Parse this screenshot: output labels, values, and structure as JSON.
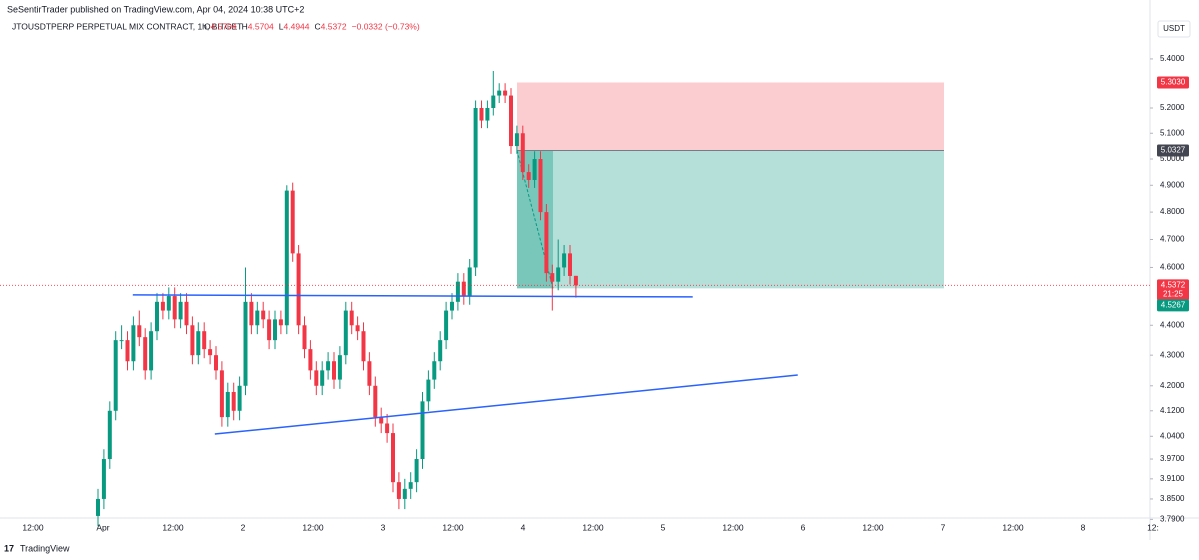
{
  "chart_data": {
    "type": "candlestick",
    "publisher": "SeSentirTrader published on TradingView.com, Apr 04, 2024 10:38 UTC+2",
    "symbol": "JTOUSDTPERP PERPETUAL MIX CONTRACT, 1h, BITGET",
    "legend_parts": [
      {
        "label": "O",
        "value": "4.5704"
      },
      {
        "label": "H",
        "value": "4.5704"
      },
      {
        "label": "L",
        "value": "4.4944"
      },
      {
        "label": "C",
        "value": "4.5372"
      },
      {
        "label": "",
        "value": "−0.0332 (−0.73%)"
      }
    ],
    "currency": "USDT",
    "brand": "TradingView",
    "log_scale": true,
    "ylim": [
      3.794,
      5.564
    ],
    "yticks": [
      {
        "value": 5.4,
        "label": "5.4000"
      },
      {
        "value": 5.2,
        "label": "5.2000"
      },
      {
        "value": 5.1,
        "label": "5.1000"
      },
      {
        "value": 5.0,
        "label": "5.0000"
      },
      {
        "value": 4.9,
        "label": "4.9000"
      },
      {
        "value": 4.8,
        "label": "4.8000"
      },
      {
        "value": 4.7,
        "label": "4.7000"
      },
      {
        "value": 4.6,
        "label": "4.6000"
      },
      {
        "value": 4.4,
        "label": "4.4000"
      },
      {
        "value": 4.3,
        "label": "4.3000"
      },
      {
        "value": 4.2,
        "label": "4.2000"
      },
      {
        "value": 4.12,
        "label": "4.1200"
      },
      {
        "value": 4.04,
        "label": "4.0400"
      },
      {
        "value": 3.97,
        "label": "3.9700"
      },
      {
        "value": 3.91,
        "label": "3.9100"
      },
      {
        "value": 3.85,
        "label": "3.8500"
      },
      {
        "value": 3.79,
        "label": "3.7900"
      }
    ],
    "time_labels": [
      "12:00",
      "Apr",
      "12:00",
      "2",
      "12:00",
      "3",
      "12:00",
      "4",
      "12:00",
      "5",
      "12:00",
      "6",
      "12:00",
      "7",
      "12:00",
      "8",
      "12:"
    ],
    "up_color": "#089981",
    "down_color": "#f23645",
    "open": [
      3.8,
      3.85,
      3.97,
      4.12,
      4.35,
      4.35,
      4.28,
      4.4,
      4.36,
      4.25,
      4.38,
      4.48,
      4.45,
      4.5,
      4.42,
      4.48,
      4.4,
      4.3,
      4.38,
      4.32,
      4.3,
      4.25,
      4.1,
      4.18,
      4.12,
      4.2,
      4.48,
      4.4,
      4.45,
      4.42,
      4.35,
      4.42,
      4.4,
      4.88,
      4.65,
      4.4,
      4.32,
      4.25,
      4.2,
      4.25,
      4.28,
      4.22,
      4.3,
      4.45,
      4.4,
      4.38,
      4.28,
      4.2,
      4.1,
      4.08,
      4.05,
      3.9,
      3.85,
      3.88,
      3.9,
      3.97,
      4.15,
      4.22,
      4.28,
      4.35,
      4.45,
      4.48,
      4.55,
      4.5,
      4.6,
      5.2,
      5.15,
      5.2,
      5.25,
      5.27,
      5.25,
      5.05,
      5.1,
      4.95,
      4.92,
      5.0,
      4.8,
      4.58,
      4.55,
      4.6,
      4.65,
      4.5704
    ],
    "high": [
      3.88,
      4.0,
      4.15,
      4.38,
      4.4,
      4.38,
      4.43,
      4.45,
      4.39,
      4.41,
      4.51,
      4.51,
      4.53,
      4.53,
      4.51,
      4.51,
      4.43,
      4.41,
      4.41,
      4.35,
      4.33,
      4.28,
      4.21,
      4.21,
      4.23,
      4.6,
      4.51,
      4.48,
      4.48,
      4.45,
      4.45,
      4.45,
      4.9,
      4.91,
      4.68,
      4.43,
      4.35,
      4.28,
      4.28,
      4.31,
      4.31,
      4.33,
      4.48,
      4.48,
      4.43,
      4.41,
      4.31,
      4.23,
      4.13,
      4.11,
      4.08,
      3.93,
      3.91,
      3.93,
      4.0,
      4.18,
      4.25,
      4.31,
      4.38,
      4.48,
      4.51,
      4.58,
      4.58,
      4.63,
      5.23,
      5.23,
      5.23,
      5.35,
      5.3,
      5.3,
      5.28,
      5.13,
      5.13,
      4.98,
      5.03,
      5.03,
      4.83,
      4.61,
      4.7,
      4.68,
      4.68,
      4.5704
    ],
    "low": [
      3.77,
      3.82,
      3.94,
      4.09,
      4.32,
      4.25,
      4.25,
      4.33,
      4.22,
      4.22,
      4.35,
      4.42,
      4.42,
      4.39,
      4.39,
      4.37,
      4.27,
      4.27,
      4.29,
      4.27,
      4.22,
      4.07,
      4.07,
      4.09,
      4.09,
      4.17,
      4.37,
      4.37,
      4.39,
      4.32,
      4.32,
      4.37,
      4.37,
      4.62,
      4.37,
      4.29,
      4.22,
      4.17,
      4.17,
      4.22,
      4.19,
      4.19,
      4.27,
      4.37,
      4.35,
      4.25,
      4.17,
      4.07,
      4.05,
      4.02,
      3.87,
      3.82,
      3.82,
      3.85,
      3.87,
      3.94,
      4.12,
      4.19,
      4.25,
      4.32,
      4.42,
      4.45,
      4.47,
      4.47,
      4.57,
      5.12,
      5.12,
      5.17,
      5.22,
      5.22,
      5.02,
      5.02,
      4.92,
      4.89,
      4.89,
      4.77,
      4.55,
      4.45,
      4.52,
      4.57,
      4.54,
      4.4944
    ],
    "close": [
      3.85,
      3.97,
      4.12,
      4.35,
      4.35,
      4.28,
      4.4,
      4.36,
      4.25,
      4.38,
      4.48,
      4.45,
      4.5,
      4.42,
      4.48,
      4.4,
      4.3,
      4.38,
      4.32,
      4.3,
      4.25,
      4.1,
      4.18,
      4.12,
      4.2,
      4.48,
      4.4,
      4.45,
      4.42,
      4.35,
      4.42,
      4.4,
      4.88,
      4.65,
      4.4,
      4.32,
      4.25,
      4.2,
      4.25,
      4.28,
      4.22,
      4.3,
      4.45,
      4.4,
      4.38,
      4.28,
      4.2,
      4.1,
      4.08,
      4.05,
      3.9,
      3.85,
      3.88,
      3.9,
      3.97,
      4.15,
      4.22,
      4.28,
      4.35,
      4.45,
      4.48,
      4.55,
      4.5,
      4.6,
      5.2,
      5.15,
      5.2,
      5.25,
      5.27,
      5.25,
      5.05,
      5.1,
      4.95,
      4.92,
      5.0,
      4.8,
      4.58,
      4.55,
      4.6,
      4.65,
      4.57,
      4.5372
    ],
    "trend_lines": [
      {
        "x": [
          5.9,
          100.8
        ],
        "values": [
          4.504,
          4.497
        ],
        "color": "#2962ff"
      },
      {
        "x": [
          19.8,
          118.6
        ],
        "values": [
          4.047,
          4.235
        ],
        "color": "#2962ff"
      }
    ],
    "position": {
      "stop": {
        "value": 5.303,
        "label": "5.3030"
      },
      "entry": {
        "value": 5.0327,
        "label": "5.0327"
      },
      "target": {
        "value": 4.5267,
        "label": "4.5267"
      }
    },
    "price_badge": {
      "value": 4.5372,
      "label": "4.5372",
      "countdown": "21:25"
    }
  }
}
